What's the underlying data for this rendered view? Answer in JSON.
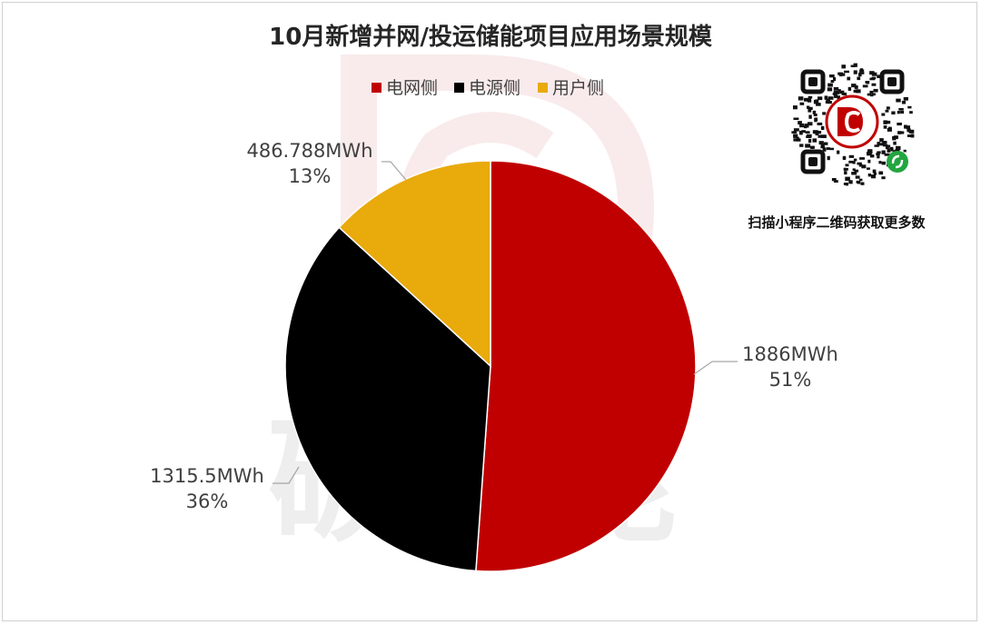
{
  "colors": {
    "grid_side": "#c00000",
    "source_side": "#000000",
    "user_side": "#e9aa0c",
    "leader": "#a6a6a6",
    "watermark": "#f0d3d3"
  },
  "watermark": {
    "text": "碳储能",
    "logo_icon": "cd-logo-icon"
  },
  "qr": {
    "caption": "扫描小程序二维码获取更多数",
    "icon": "mini-program-qr-icon"
  },
  "chart_data": {
    "type": "pie",
    "title": "10月新增并网/投运储能项目应用场景规模",
    "legend_position": "top",
    "start_angle_deg": 0,
    "direction": "clockwise",
    "slices": [
      {
        "name": "电网侧",
        "value": 1886,
        "value_label": "1886MWh",
        "percent_label": "51%",
        "color_key": "grid_side"
      },
      {
        "name": "电源侧",
        "value": 1315.5,
        "value_label": "1315.5MWh",
        "percent_label": "36%",
        "color_key": "source_side"
      },
      {
        "name": "用户侧",
        "value": 486.788,
        "value_label": "486.788MWh",
        "percent_label": "13%",
        "color_key": "user_side"
      }
    ]
  }
}
